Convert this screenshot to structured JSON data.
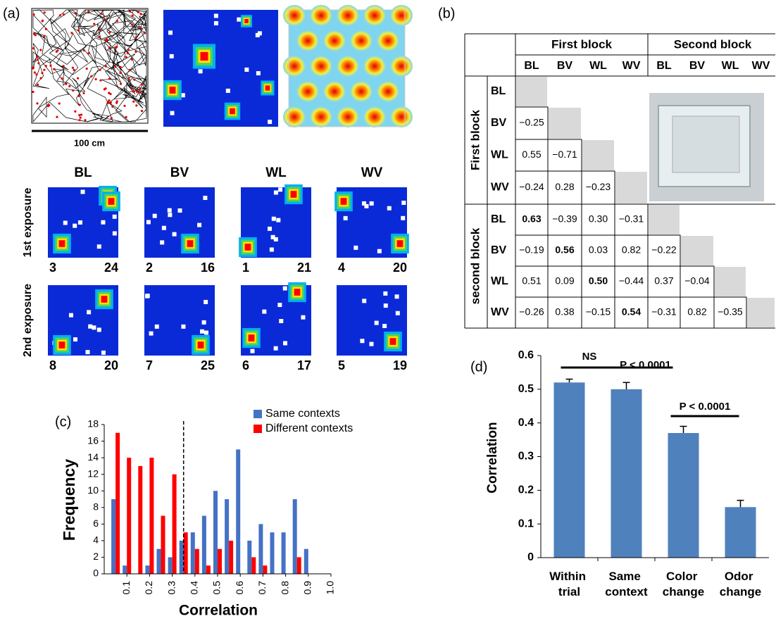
{
  "place_maps": {
    "label": "(a)",
    "scale_label": "100 cm",
    "columns": [
      "BL",
      "BV",
      "WL",
      "WV"
    ],
    "rows": [
      {
        "label": "1st exposure",
        "cells": [
          {
            "index": 3,
            "count": 24
          },
          {
            "index": 2,
            "count": 16
          },
          {
            "index": 1,
            "count": 21
          },
          {
            "index": 4,
            "count": 20
          }
        ]
      },
      {
        "label": "2nd exposure",
        "cells": [
          {
            "index": 8,
            "count": 20
          },
          {
            "index": 7,
            "count": 25
          },
          {
            "index": 6,
            "count": 17
          },
          {
            "index": 5,
            "count": 19
          }
        ]
      }
    ]
  },
  "table": {
    "label": "(b)",
    "col_groups": [
      "First block",
      "Second block"
    ],
    "columns": [
      "BL",
      "BV",
      "WL",
      "WV",
      "BL",
      "BV",
      "WL",
      "WV"
    ],
    "row_groups": [
      {
        "label": "First block",
        "rows": [
          {
            "label": "BL",
            "cells": []
          },
          {
            "label": "BV",
            "cells": [
              "−0.25"
            ]
          },
          {
            "label": "WL",
            "cells": [
              "0.55",
              "−0.71"
            ]
          },
          {
            "label": "WV",
            "cells": [
              "−0.24",
              "0.28",
              "−0.23"
            ]
          }
        ]
      },
      {
        "label": "second block",
        "rows": [
          {
            "label": "BL",
            "cells": [
              "0.63",
              "−0.39",
              "0.30",
              "−0.31"
            ]
          },
          {
            "label": "BV",
            "cells": [
              "−0.19",
              "0.56",
              "0.03",
              "0.82",
              "−0.22"
            ]
          },
          {
            "label": "WL",
            "cells": [
              "0.51",
              "0.09",
              "0.50",
              "−0.44",
              "0.37",
              "−0.04"
            ]
          },
          {
            "label": "WV",
            "cells": [
              "−0.26",
              "0.38",
              "−0.15",
              "0.54",
              "−0.31",
              "0.82",
              "−0.35"
            ]
          }
        ]
      }
    ]
  },
  "chart_data": [
    {
      "type": "histogram",
      "label": "(c)",
      "x_label": "Correlation",
      "y_label": "Frequency",
      "x": [
        0.05,
        0.1,
        0.15,
        0.2,
        0.25,
        0.3,
        0.35,
        0.4,
        0.45,
        0.5,
        0.55,
        0.6,
        0.65,
        0.7,
        0.75,
        0.8,
        0.85,
        0.9
      ],
      "series": [
        {
          "name": "Same contexts",
          "color": "#4472c4",
          "values": [
            9,
            1,
            0,
            1,
            3,
            2,
            4,
            5,
            7,
            10,
            9,
            15,
            4,
            6,
            5,
            5,
            9,
            3
          ]
        },
        {
          "name": "Different contexts",
          "color": "#ff0000",
          "values": [
            17,
            14,
            13,
            14,
            7,
            12,
            5,
            3,
            1,
            3,
            4,
            0,
            2,
            1,
            0,
            0,
            2,
            0
          ]
        }
      ],
      "vline": 0.35,
      "xlim": [
        0,
        1
      ],
      "xticks": [
        0.1,
        0.2,
        0.3,
        0.4,
        0.5,
        0.6,
        0.7,
        0.8,
        0.9,
        {
          "value": 1,
          "label": "1.0"
        }
      ],
      "ylim": [
        0,
        18
      ],
      "yticks": [
        0,
        2,
        4,
        6,
        8,
        10,
        12,
        14,
        16,
        18
      ],
      "legend": "upper right"
    },
    {
      "type": "bar",
      "label": "(d)",
      "y_label": "Correlation",
      "categories": [
        "Within trial",
        "Same context",
        "Color change",
        "Odor change"
      ],
      "values": [
        0.52,
        0.5,
        0.37,
        0.15
      ],
      "errors": [
        0.01,
        0.02,
        0.02,
        0.02
      ],
      "color": "#4f81bd",
      "annotations": [
        "NS",
        "P < 0.0001",
        "P < 0.0001"
      ],
      "ylim": [
        0,
        0.6
      ],
      "yticks": [
        0,
        0.1,
        0.2,
        0.3,
        0.4,
        0.5,
        0.6
      ]
    }
  ]
}
